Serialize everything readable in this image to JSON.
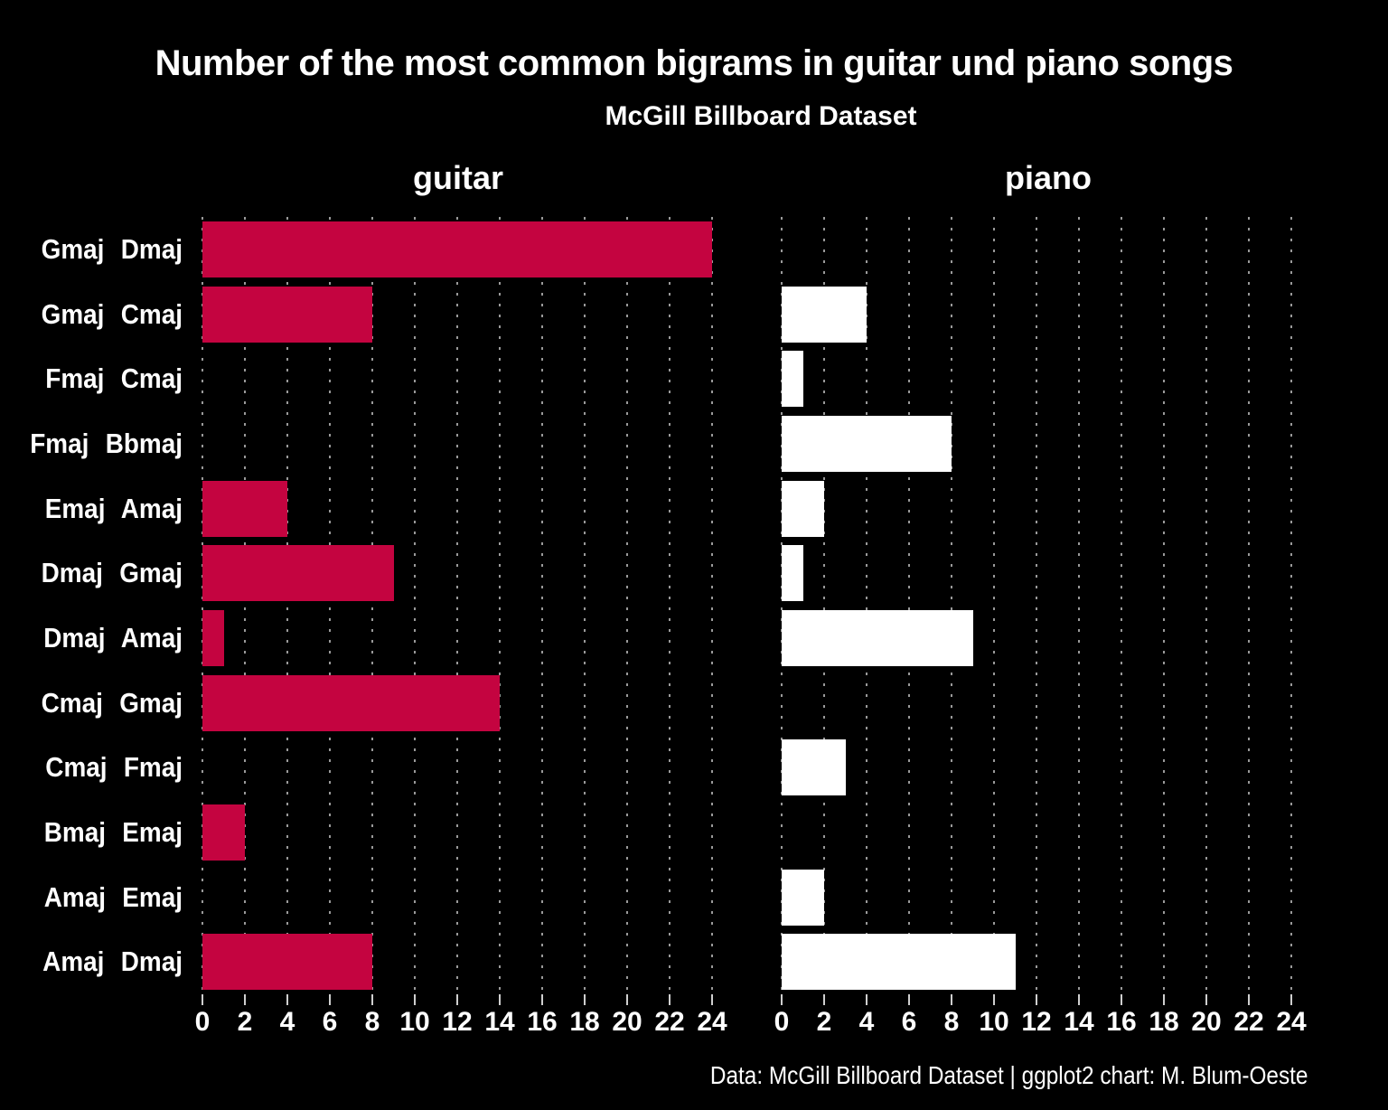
{
  "page": {
    "background_color": "#000000",
    "text_color": "#ffffff",
    "gridline_color": "#9a9a9a"
  },
  "chart_data": {
    "type": "bar",
    "orientation": "horizontal",
    "title": "Number of the most common bigrams in guitar und piano songs",
    "subtitle": "McGill Billboard Dataset",
    "caption": "Data: McGill Billboard Dataset | ggplot2 chart: M. Blum-Oeste",
    "categories": [
      "Gmaj Dmaj",
      "Gmaj Cmaj",
      "Fmaj Cmaj",
      "Fmaj Bbmaj",
      "Emaj Amaj",
      "Dmaj Gmaj",
      "Dmaj Amaj",
      "Cmaj Gmaj",
      "Cmaj Fmaj",
      "Bmaj Emaj",
      "Amaj Emaj",
      "Amaj Dmaj"
    ],
    "facets": [
      {
        "name": "guitar",
        "color": "#C40440",
        "values": [
          24,
          8,
          0,
          0,
          4,
          9,
          1,
          14,
          0,
          2,
          0,
          8
        ]
      },
      {
        "name": "piano",
        "color": "#FFFFFF",
        "values": [
          0,
          4,
          1,
          8,
          2,
          1,
          9,
          0,
          3,
          0,
          2,
          11
        ]
      }
    ],
    "x_axis": {
      "min": 0,
      "max": 24,
      "ticks": [
        0,
        2,
        4,
        6,
        8,
        10,
        12,
        14,
        16,
        18,
        20,
        22,
        24
      ]
    },
    "grid": {
      "style": "dotted",
      "direction": "vertical",
      "on": true
    },
    "legend_position": "none"
  }
}
